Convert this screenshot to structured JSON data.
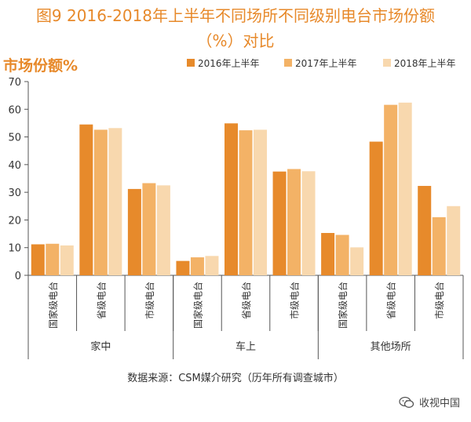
{
  "title_line1": "图9 2016-2018年上半年不同场所不同级别电台市场份额",
  "title_line2": "（%）对比",
  "source": "数据来源：CSM媒介研究（历年所有调查城市）",
  "watermark": "收视中国",
  "colors": {
    "accent": "#e7892a",
    "s2016": "#e78a2b",
    "s2017": "#f3b266",
    "s2018": "#f8d8ae",
    "axis": "#555555",
    "text": "#333333"
  },
  "icons": {
    "watermark": "wechat-icon"
  },
  "chart_data": {
    "type": "bar",
    "ylabel": "市场份额%",
    "ylim": [
      0,
      70
    ],
    "yticks": [
      0,
      10,
      20,
      30,
      40,
      50,
      60,
      70
    ],
    "grid": false,
    "legend_position": "top-right",
    "groups": [
      {
        "name": "家中",
        "categories": [
          "国家级电台",
          "省级电台",
          "市级电台"
        ]
      },
      {
        "name": "车上",
        "categories": [
          "国家级电台",
          "省级电台",
          "市级电台"
        ]
      },
      {
        "name": "其他场所",
        "categories": [
          "国家级电台",
          "省级电台",
          "市级电台"
        ]
      }
    ],
    "series": [
      {
        "name": "2016年上半年",
        "values": [
          11.2,
          54.5,
          31.2,
          5.2,
          54.9,
          37.5,
          15.3,
          48.3,
          32.3
        ]
      },
      {
        "name": "2017年上半年",
        "values": [
          11.4,
          52.6,
          33.3,
          6.5,
          52.4,
          38.4,
          14.6,
          61.6,
          21.0
        ]
      },
      {
        "name": "2018年上半年",
        "values": [
          10.8,
          53.2,
          32.5,
          7.0,
          52.6,
          37.6,
          10.1,
          62.4,
          25.0
        ]
      }
    ]
  }
}
